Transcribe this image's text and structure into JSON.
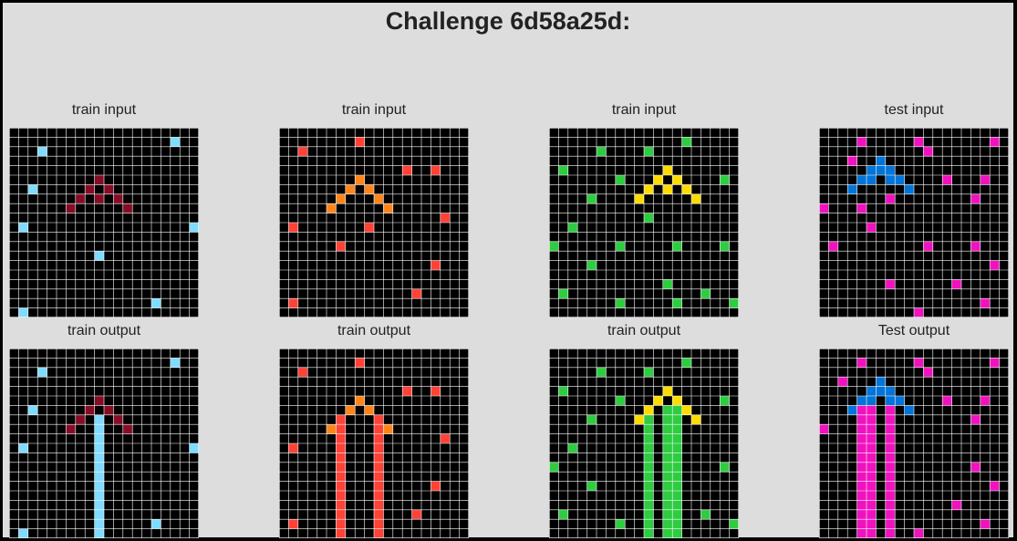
{
  "title": "Challenge 6d58a25d:",
  "colors": {
    "background": "#000000",
    "gridline": "#ffffff",
    "palette": {
      "0": "#000000",
      "1": "#0074D9",
      "2": "#FF4136",
      "3": "#2ECC40",
      "4": "#FFDC00",
      "6": "#F012BE",
      "7": "#FF851B",
      "8": "#7FDBFF",
      "9": "#870C25"
    }
  },
  "panels": [
    {
      "id": "train1-input",
      "label": "train input",
      "size": 20,
      "cells": [
        [
          6,
          2,
          8
        ],
        [
          1,
          17,
          8
        ],
        [
          2,
          3,
          8
        ],
        [
          5,
          9,
          9
        ],
        [
          6,
          8,
          9
        ],
        [
          6,
          10,
          9
        ],
        [
          7,
          7,
          9
        ],
        [
          7,
          9,
          9
        ],
        [
          7,
          11,
          9
        ],
        [
          8,
          6,
          9
        ],
        [
          8,
          12,
          9
        ],
        [
          10,
          1,
          8
        ],
        [
          10,
          19,
          8
        ],
        [
          13,
          9,
          8
        ],
        [
          18,
          15,
          8
        ],
        [
          19,
          1,
          8
        ]
      ]
    },
    {
      "id": "train1-output",
      "label": "train output",
      "size": 20,
      "cells": [
        [
          6,
          2,
          8
        ],
        [
          1,
          17,
          8
        ],
        [
          2,
          3,
          8
        ],
        [
          5,
          9,
          9
        ],
        [
          6,
          8,
          9
        ],
        [
          6,
          10,
          9
        ],
        [
          7,
          7,
          9
        ],
        [
          7,
          9,
          9
        ],
        [
          7,
          11,
          9
        ],
        [
          8,
          6,
          9
        ],
        [
          8,
          12,
          9
        ],
        [
          10,
          1,
          8
        ],
        [
          10,
          19,
          8
        ],
        [
          18,
          15,
          8
        ],
        [
          19,
          1,
          8
        ],
        [
          7,
          9,
          8
        ],
        [
          8,
          9,
          8
        ],
        [
          9,
          9,
          8
        ],
        [
          10,
          9,
          8
        ],
        [
          11,
          9,
          8
        ],
        [
          12,
          9,
          8
        ],
        [
          13,
          9,
          8
        ],
        [
          14,
          9,
          8
        ],
        [
          15,
          9,
          8
        ],
        [
          16,
          9,
          8
        ],
        [
          17,
          9,
          8
        ],
        [
          18,
          9,
          8
        ],
        [
          19,
          9,
          8
        ]
      ]
    },
    {
      "id": "train2-input",
      "label": "train input",
      "size": 20,
      "cells": [
        [
          1,
          8,
          2
        ],
        [
          2,
          2,
          2
        ],
        [
          4,
          13,
          2
        ],
        [
          4,
          16,
          2
        ],
        [
          5,
          8,
          7
        ],
        [
          6,
          7,
          7
        ],
        [
          6,
          9,
          7
        ],
        [
          7,
          6,
          7
        ],
        [
          7,
          10,
          7
        ],
        [
          8,
          5,
          7
        ],
        [
          8,
          11,
          7
        ],
        [
          9,
          17,
          2
        ],
        [
          10,
          1,
          2
        ],
        [
          10,
          9,
          2
        ],
        [
          12,
          6,
          2
        ],
        [
          14,
          16,
          2
        ],
        [
          17,
          14,
          2
        ],
        [
          18,
          1,
          2
        ]
      ]
    },
    {
      "id": "train2-output",
      "label": "train output",
      "size": 20,
      "cells": [
        [
          1,
          8,
          2
        ],
        [
          2,
          2,
          2
        ],
        [
          4,
          13,
          2
        ],
        [
          4,
          16,
          2
        ],
        [
          5,
          8,
          7
        ],
        [
          6,
          7,
          7
        ],
        [
          6,
          9,
          7
        ],
        [
          7,
          6,
          7
        ],
        [
          7,
          10,
          7
        ],
        [
          8,
          5,
          7
        ],
        [
          8,
          11,
          7
        ],
        [
          9,
          17,
          2
        ],
        [
          10,
          1,
          2
        ],
        [
          14,
          16,
          2
        ],
        [
          17,
          14,
          2
        ],
        [
          18,
          1,
          2
        ],
        [
          7,
          6,
          2
        ],
        [
          8,
          6,
          2
        ],
        [
          9,
          6,
          2
        ],
        [
          10,
          6,
          2
        ],
        [
          11,
          6,
          2
        ],
        [
          12,
          6,
          2
        ],
        [
          13,
          6,
          2
        ],
        [
          14,
          6,
          2
        ],
        [
          15,
          6,
          2
        ],
        [
          16,
          6,
          2
        ],
        [
          17,
          6,
          2
        ],
        [
          18,
          6,
          2
        ],
        [
          19,
          6,
          2
        ],
        [
          7,
          10,
          2
        ],
        [
          8,
          10,
          2
        ],
        [
          9,
          10,
          2
        ],
        [
          10,
          10,
          2
        ],
        [
          11,
          10,
          2
        ],
        [
          12,
          10,
          2
        ],
        [
          13,
          10,
          2
        ],
        [
          14,
          10,
          2
        ],
        [
          15,
          10,
          2
        ],
        [
          16,
          10,
          2
        ],
        [
          17,
          10,
          2
        ],
        [
          18,
          10,
          2
        ],
        [
          19,
          10,
          2
        ]
      ]
    },
    {
      "id": "train3-input",
      "label": "train input",
      "size": 20,
      "cells": [
        [
          1,
          14,
          3
        ],
        [
          2,
          5,
          3
        ],
        [
          2,
          10,
          3
        ],
        [
          4,
          1,
          3
        ],
        [
          5,
          7,
          3
        ],
        [
          5,
          18,
          3
        ],
        [
          4,
          12,
          4
        ],
        [
          5,
          11,
          4
        ],
        [
          5,
          13,
          4
        ],
        [
          6,
          10,
          4
        ],
        [
          6,
          12,
          4
        ],
        [
          6,
          14,
          4
        ],
        [
          7,
          9,
          4
        ],
        [
          7,
          15,
          4
        ],
        [
          7,
          4,
          3
        ],
        [
          9,
          10,
          3
        ],
        [
          10,
          2,
          3
        ],
        [
          12,
          0,
          3
        ],
        [
          12,
          7,
          3
        ],
        [
          12,
          13,
          3
        ],
        [
          12,
          18,
          3
        ],
        [
          14,
          4,
          3
        ],
        [
          16,
          12,
          3
        ],
        [
          17,
          1,
          3
        ],
        [
          17,
          16,
          3
        ],
        [
          18,
          7,
          3
        ],
        [
          18,
          13,
          3
        ],
        [
          18,
          19,
          3
        ]
      ]
    },
    {
      "id": "train3-output",
      "label": "train output",
      "size": 20,
      "cells": [
        [
          1,
          14,
          3
        ],
        [
          2,
          5,
          3
        ],
        [
          2,
          10,
          3
        ],
        [
          4,
          1,
          3
        ],
        [
          5,
          7,
          3
        ],
        [
          5,
          18,
          3
        ],
        [
          4,
          12,
          4
        ],
        [
          5,
          11,
          4
        ],
        [
          5,
          13,
          4
        ],
        [
          6,
          10,
          4
        ],
        [
          6,
          12,
          4
        ],
        [
          6,
          14,
          4
        ],
        [
          7,
          9,
          4
        ],
        [
          7,
          15,
          4
        ],
        [
          7,
          4,
          3
        ],
        [
          10,
          2,
          3
        ],
        [
          12,
          0,
          3
        ],
        [
          12,
          18,
          3
        ],
        [
          14,
          4,
          3
        ],
        [
          17,
          1,
          3
        ],
        [
          17,
          16,
          3
        ],
        [
          18,
          7,
          3
        ],
        [
          18,
          19,
          3
        ],
        [
          7,
          10,
          3
        ],
        [
          8,
          10,
          3
        ],
        [
          9,
          10,
          3
        ],
        [
          10,
          10,
          3
        ],
        [
          11,
          10,
          3
        ],
        [
          12,
          10,
          3
        ],
        [
          13,
          10,
          3
        ],
        [
          14,
          10,
          3
        ],
        [
          15,
          10,
          3
        ],
        [
          16,
          10,
          3
        ],
        [
          17,
          10,
          3
        ],
        [
          18,
          10,
          3
        ],
        [
          19,
          10,
          3
        ],
        [
          6,
          12,
          3
        ],
        [
          7,
          12,
          3
        ],
        [
          8,
          12,
          3
        ],
        [
          9,
          12,
          3
        ],
        [
          10,
          12,
          3
        ],
        [
          11,
          12,
          3
        ],
        [
          12,
          12,
          3
        ],
        [
          13,
          12,
          3
        ],
        [
          14,
          12,
          3
        ],
        [
          15,
          12,
          3
        ],
        [
          16,
          12,
          3
        ],
        [
          17,
          12,
          3
        ],
        [
          18,
          12,
          3
        ],
        [
          19,
          12,
          3
        ],
        [
          6,
          13,
          3
        ],
        [
          7,
          13,
          3
        ],
        [
          8,
          13,
          3
        ],
        [
          9,
          13,
          3
        ],
        [
          10,
          13,
          3
        ],
        [
          11,
          13,
          3
        ],
        [
          12,
          13,
          3
        ],
        [
          13,
          13,
          3
        ],
        [
          14,
          13,
          3
        ],
        [
          15,
          13,
          3
        ],
        [
          16,
          13,
          3
        ],
        [
          17,
          13,
          3
        ],
        [
          18,
          13,
          3
        ],
        [
          19,
          13,
          3
        ]
      ]
    },
    {
      "id": "test-input",
      "label": "test input",
      "size": 20,
      "cells": [
        [
          1,
          4,
          6
        ],
        [
          1,
          10,
          6
        ],
        [
          1,
          18,
          6
        ],
        [
          2,
          11,
          6
        ],
        [
          3,
          3,
          6
        ],
        [
          3,
          6,
          1
        ],
        [
          4,
          5,
          1
        ],
        [
          4,
          6,
          1
        ],
        [
          4,
          7,
          1
        ],
        [
          5,
          4,
          1
        ],
        [
          5,
          5,
          1
        ],
        [
          5,
          7,
          1
        ],
        [
          5,
          8,
          1
        ],
        [
          6,
          3,
          1
        ],
        [
          6,
          9,
          1
        ],
        [
          5,
          13,
          6
        ],
        [
          5,
          17,
          6
        ],
        [
          7,
          7,
          6
        ],
        [
          7,
          16,
          6
        ],
        [
          8,
          0,
          6
        ],
        [
          8,
          4,
          6
        ],
        [
          10,
          5,
          6
        ],
        [
          12,
          1,
          6
        ],
        [
          12,
          11,
          6
        ],
        [
          12,
          16,
          6
        ],
        [
          14,
          18,
          6
        ],
        [
          16,
          7,
          6
        ],
        [
          16,
          14,
          6
        ],
        [
          18,
          17,
          6
        ],
        [
          19,
          10,
          6
        ]
      ]
    },
    {
      "id": "test-output",
      "label": "Test output",
      "size": 20,
      "cells": [
        [
          1,
          4,
          6
        ],
        [
          1,
          10,
          6
        ],
        [
          1,
          18,
          6
        ],
        [
          2,
          11,
          6
        ],
        [
          3,
          2,
          6
        ],
        [
          3,
          6,
          1
        ],
        [
          4,
          5,
          1
        ],
        [
          4,
          6,
          1
        ],
        [
          4,
          7,
          1
        ],
        [
          5,
          4,
          1
        ],
        [
          5,
          5,
          1
        ],
        [
          5,
          7,
          1
        ],
        [
          5,
          8,
          1
        ],
        [
          6,
          3,
          1
        ],
        [
          6,
          9,
          1
        ],
        [
          5,
          13,
          6
        ],
        [
          5,
          17,
          6
        ],
        [
          7,
          16,
          6
        ],
        [
          8,
          0,
          6
        ],
        [
          12,
          16,
          6
        ],
        [
          14,
          18,
          6
        ],
        [
          16,
          14,
          6
        ],
        [
          18,
          17,
          6
        ],
        [
          19,
          10,
          6
        ],
        [
          6,
          4,
          6
        ],
        [
          7,
          4,
          6
        ],
        [
          8,
          4,
          6
        ],
        [
          9,
          4,
          6
        ],
        [
          10,
          4,
          6
        ],
        [
          11,
          4,
          6
        ],
        [
          12,
          4,
          6
        ],
        [
          13,
          4,
          6
        ],
        [
          14,
          4,
          6
        ],
        [
          15,
          4,
          6
        ],
        [
          16,
          4,
          6
        ],
        [
          17,
          4,
          6
        ],
        [
          18,
          4,
          6
        ],
        [
          19,
          4,
          6
        ],
        [
          6,
          5,
          6
        ],
        [
          7,
          5,
          6
        ],
        [
          8,
          5,
          6
        ],
        [
          9,
          5,
          6
        ],
        [
          10,
          5,
          6
        ],
        [
          11,
          5,
          6
        ],
        [
          12,
          5,
          6
        ],
        [
          13,
          5,
          6
        ],
        [
          14,
          5,
          6
        ],
        [
          15,
          5,
          6
        ],
        [
          16,
          5,
          6
        ],
        [
          17,
          5,
          6
        ],
        [
          18,
          5,
          6
        ],
        [
          19,
          5,
          6
        ],
        [
          6,
          7,
          6
        ],
        [
          7,
          7,
          6
        ],
        [
          8,
          7,
          6
        ],
        [
          9,
          7,
          6
        ],
        [
          10,
          7,
          6
        ],
        [
          11,
          7,
          6
        ],
        [
          12,
          7,
          6
        ],
        [
          13,
          7,
          6
        ],
        [
          14,
          7,
          6
        ],
        [
          15,
          7,
          6
        ],
        [
          16,
          7,
          6
        ],
        [
          17,
          7,
          6
        ],
        [
          18,
          7,
          6
        ],
        [
          19,
          7,
          6
        ]
      ]
    }
  ]
}
